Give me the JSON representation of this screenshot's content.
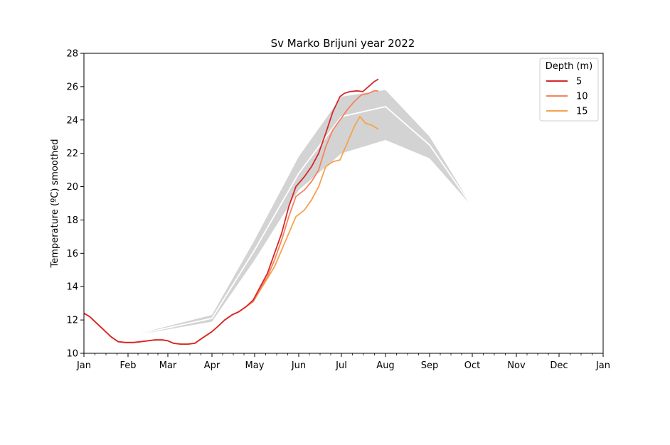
{
  "chart_data": {
    "type": "line",
    "title": "Sv Marko Brijuni year 2022",
    "ylabel": "Temperature (ºC) smoothed",
    "xlabel": "",
    "ylim": [
      10,
      28
    ],
    "xlim_days": [
      0,
      365
    ],
    "yticks": [
      "10",
      "12",
      "14",
      "16",
      "18",
      "20",
      "22",
      "24",
      "26",
      "28"
    ],
    "month_ticks": [
      "Jan",
      "Feb",
      "Mar",
      "Apr",
      "May",
      "Jun",
      "Jul",
      "Aug",
      "Sep",
      "Oct",
      "Nov",
      "Dec",
      "Jan"
    ],
    "legend": {
      "title": "Depth (m)",
      "placement": "top-right"
    },
    "climatology": {
      "band_color": "#d3d3d3",
      "mean_color": "#ffffff",
      "x": [
        "Jan 1",
        "Jan 31",
        "Apr 1",
        "May 1",
        "Jun 1",
        "Jul 1",
        "Aug 1",
        "Sep 1",
        "Oct 1"
      ],
      "upper": [
        11.6,
        11.0,
        12.3,
        16.8,
        21.8,
        25.4,
        25.8,
        23.0,
        18.8
      ],
      "mean": [
        11.6,
        11.0,
        12.1,
        16.2,
        20.8,
        24.2,
        24.8,
        22.5,
        18.8
      ],
      "lower": [
        11.6,
        11.0,
        11.9,
        15.6,
        19.8,
        22.0,
        22.8,
        21.7,
        18.8
      ]
    },
    "series": [
      {
        "name": "5",
        "color": "#d62728",
        "x": [
          "Jan 1",
          "Jan 5",
          "Jan 10",
          "Jan 15",
          "Jan 20",
          "Jan 25",
          "Jan 30",
          "Feb 5",
          "Feb 15",
          "Feb 20",
          "Feb 25",
          "Mar 1",
          "Mar 5",
          "Mar 10",
          "Mar 15",
          "Mar 20",
          "Mar 25",
          "Apr 1",
          "Apr 5",
          "Apr 10",
          "Apr 15",
          "Apr 20",
          "Apr 25",
          "Apr 30",
          "May 5",
          "May 10",
          "May 15",
          "May 20",
          "May 25",
          "May 30",
          "Jun 5",
          "Jun 10",
          "Jun 15",
          "Jun 20",
          "Jun 25",
          "Jun 30",
          "Jul 3",
          "Jul 7",
          "Jul 12",
          "Jul 16",
          "Jul 20",
          "Jul 24",
          "Jul 27"
        ],
        "values": [
          12.4,
          12.2,
          11.8,
          11.4,
          11.0,
          10.7,
          10.65,
          10.65,
          10.75,
          10.8,
          10.8,
          10.75,
          10.6,
          10.55,
          10.55,
          10.6,
          10.9,
          11.3,
          11.6,
          12.0,
          12.3,
          12.5,
          12.8,
          13.2,
          14.0,
          14.8,
          16.0,
          17.2,
          18.8,
          20.0,
          20.6,
          21.2,
          22.0,
          23.2,
          24.5,
          25.4,
          25.6,
          25.7,
          25.75,
          25.7,
          26.0,
          26.3,
          26.45
        ]
      },
      {
        "name": "10",
        "color": "#f4845f",
        "x": [
          "Jan 1",
          "Jan 5",
          "Jan 10",
          "Jan 15",
          "Jan 20",
          "Jan 25",
          "Jan 30",
          "Feb 5",
          "Feb 15",
          "Feb 20",
          "Feb 25",
          "Mar 1",
          "Mar 5",
          "Mar 10",
          "Mar 15",
          "Mar 20",
          "Mar 25",
          "Apr 1",
          "Apr 5",
          "Apr 10",
          "Apr 15",
          "Apr 20",
          "Apr 25",
          "Apr 30",
          "May 5",
          "May 10",
          "May 15",
          "May 20",
          "May 25",
          "May 30",
          "Jun 5",
          "Jun 10",
          "Jun 15",
          "Jun 20",
          "Jun 25",
          "Jun 30",
          "Jul 5",
          "Jul 10",
          "Jul 15",
          "Jul 20",
          "Jul 24",
          "Jul 27"
        ],
        "values": [
          12.4,
          12.2,
          11.8,
          11.4,
          11.0,
          10.7,
          10.65,
          10.65,
          10.75,
          10.8,
          10.8,
          10.75,
          10.6,
          10.55,
          10.55,
          10.6,
          10.9,
          11.3,
          11.6,
          12.0,
          12.3,
          12.5,
          12.8,
          13.1,
          13.9,
          14.6,
          15.6,
          16.8,
          18.2,
          19.4,
          19.8,
          20.3,
          21.0,
          22.4,
          23.4,
          24.0,
          24.6,
          25.1,
          25.5,
          25.6,
          25.75,
          25.75
        ]
      },
      {
        "name": "15",
        "color": "#f8a14e",
        "x": [
          "Jan 1",
          "Jan 5",
          "Jan 10",
          "Jan 15",
          "Jan 20",
          "Jan 25",
          "Jan 30",
          "Feb 5",
          "Feb 15",
          "Feb 20",
          "Feb 25",
          "Mar 1",
          "Mar 5",
          "Mar 10",
          "Mar 15",
          "Mar 20",
          "Mar 25",
          "Apr 1",
          "Apr 5",
          "Apr 10",
          "Apr 15",
          "Apr 20",
          "Apr 25",
          "Apr 30",
          "May 5",
          "May 10",
          "May 15",
          "May 20",
          "May 25",
          "May 30",
          "Jun 5",
          "Jun 10",
          "Jun 15",
          "Jun 20",
          "Jun 25",
          "Jun 30",
          "Jul 5",
          "Jul 10",
          "Jul 14",
          "Jul 18",
          "Jul 22",
          "Jul 27"
        ],
        "values": [
          12.4,
          12.2,
          11.8,
          11.4,
          11.0,
          10.7,
          10.65,
          10.65,
          10.75,
          10.8,
          10.8,
          10.75,
          10.6,
          10.55,
          10.55,
          10.6,
          10.9,
          11.3,
          11.6,
          12.0,
          12.3,
          12.5,
          12.8,
          13.1,
          13.8,
          14.5,
          15.2,
          16.2,
          17.2,
          18.2,
          18.6,
          19.2,
          20.0,
          21.2,
          21.5,
          21.6,
          22.6,
          23.6,
          24.2,
          23.8,
          23.7,
          23.45
        ]
      }
    ]
  }
}
